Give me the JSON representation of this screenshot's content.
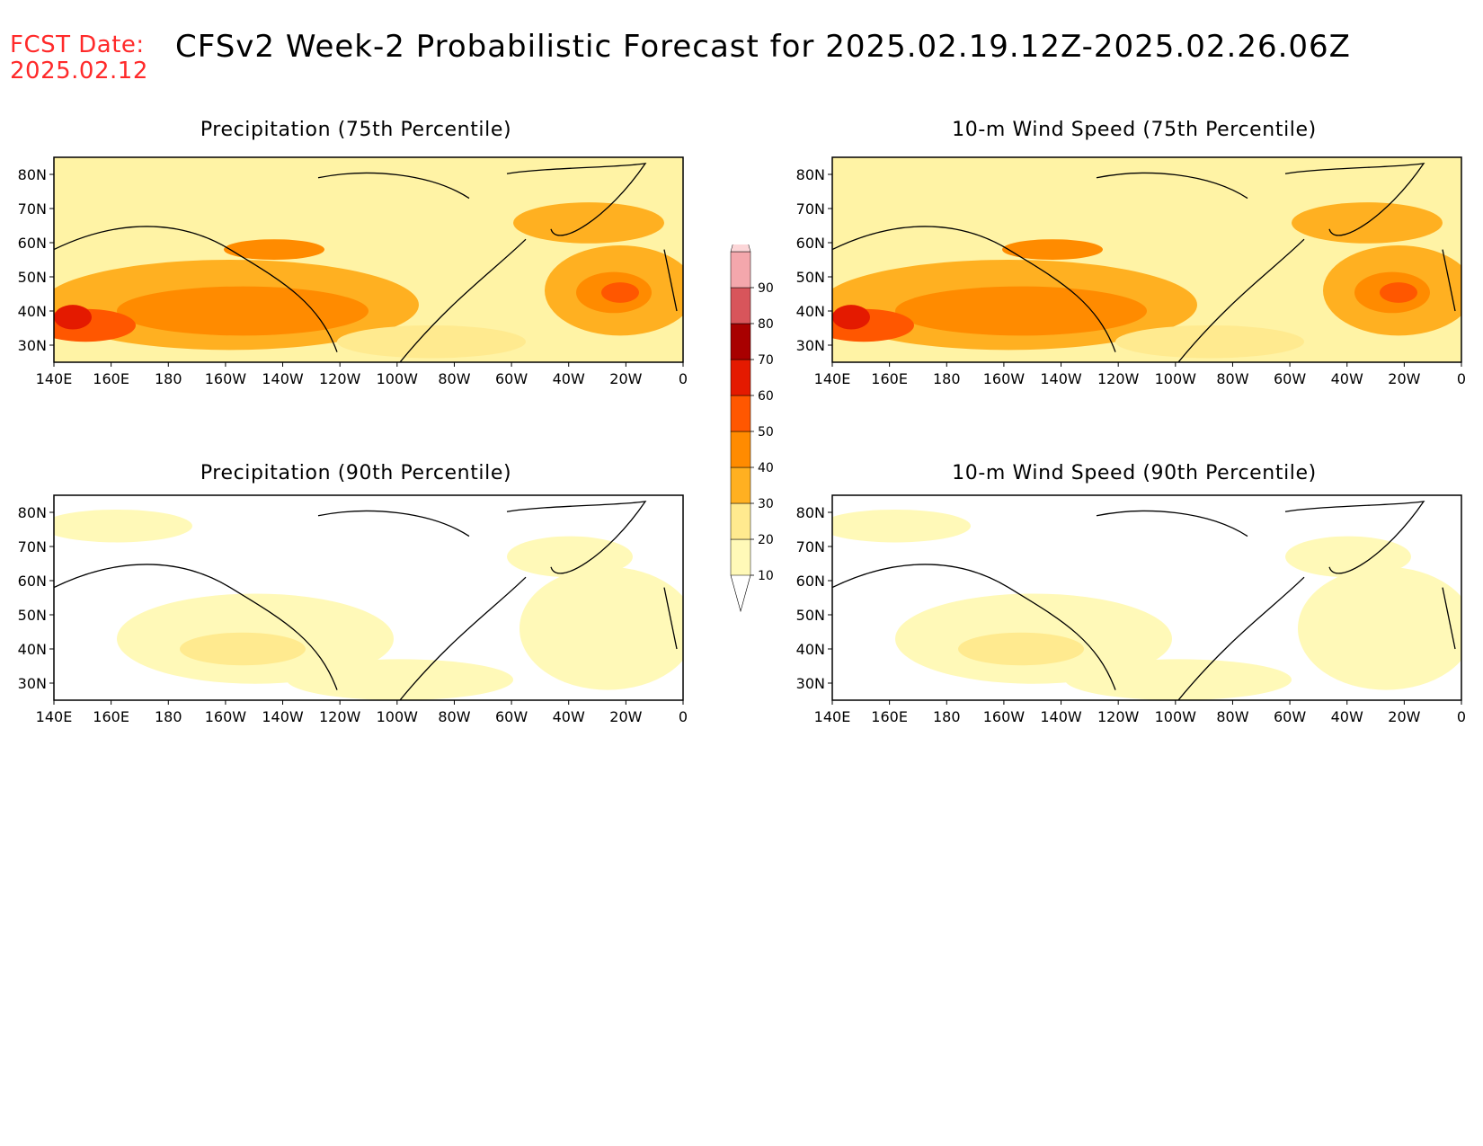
{
  "header": {
    "fcst_label": "FCST Date:",
    "fcst_date": "2025.02.12",
    "title": "CFSv2 Week-2 Probabilistic Forecast for 2025.02.19.12Z-2025.02.26.06Z"
  },
  "axes": {
    "x_ticks": [
      "140E",
      "160E",
      "180",
      "160W",
      "140W",
      "120W",
      "100W",
      "80W",
      "60W",
      "40W",
      "20W",
      "0"
    ],
    "y_ticks": [
      "80N",
      "70N",
      "60N",
      "50N",
      "40N",
      "30N"
    ]
  },
  "colorbar": {
    "levels": [
      "10",
      "20",
      "30",
      "40",
      "50",
      "60",
      "70",
      "80",
      "90"
    ],
    "colors": [
      "#fff9b8",
      "#ffea8f",
      "#ffb021",
      "#ff8b00",
      "#ff5700",
      "#e41a00",
      "#a80000",
      "#d8555b",
      "#f4a7ac",
      "#fcd6d8"
    ]
  },
  "panels": [
    {
      "id": "precip75",
      "title": "Precipitation (75th Percentile)",
      "intensity": "high"
    },
    {
      "id": "wind75",
      "title": "10-m Wind Speed (75th Percentile)",
      "intensity": "high"
    },
    {
      "id": "precip90",
      "title": "Precipitation (90th Percentile)",
      "intensity": "low"
    },
    {
      "id": "wind90",
      "title": "10-m Wind Speed (90th Percentile)",
      "intensity": "low"
    }
  ]
}
